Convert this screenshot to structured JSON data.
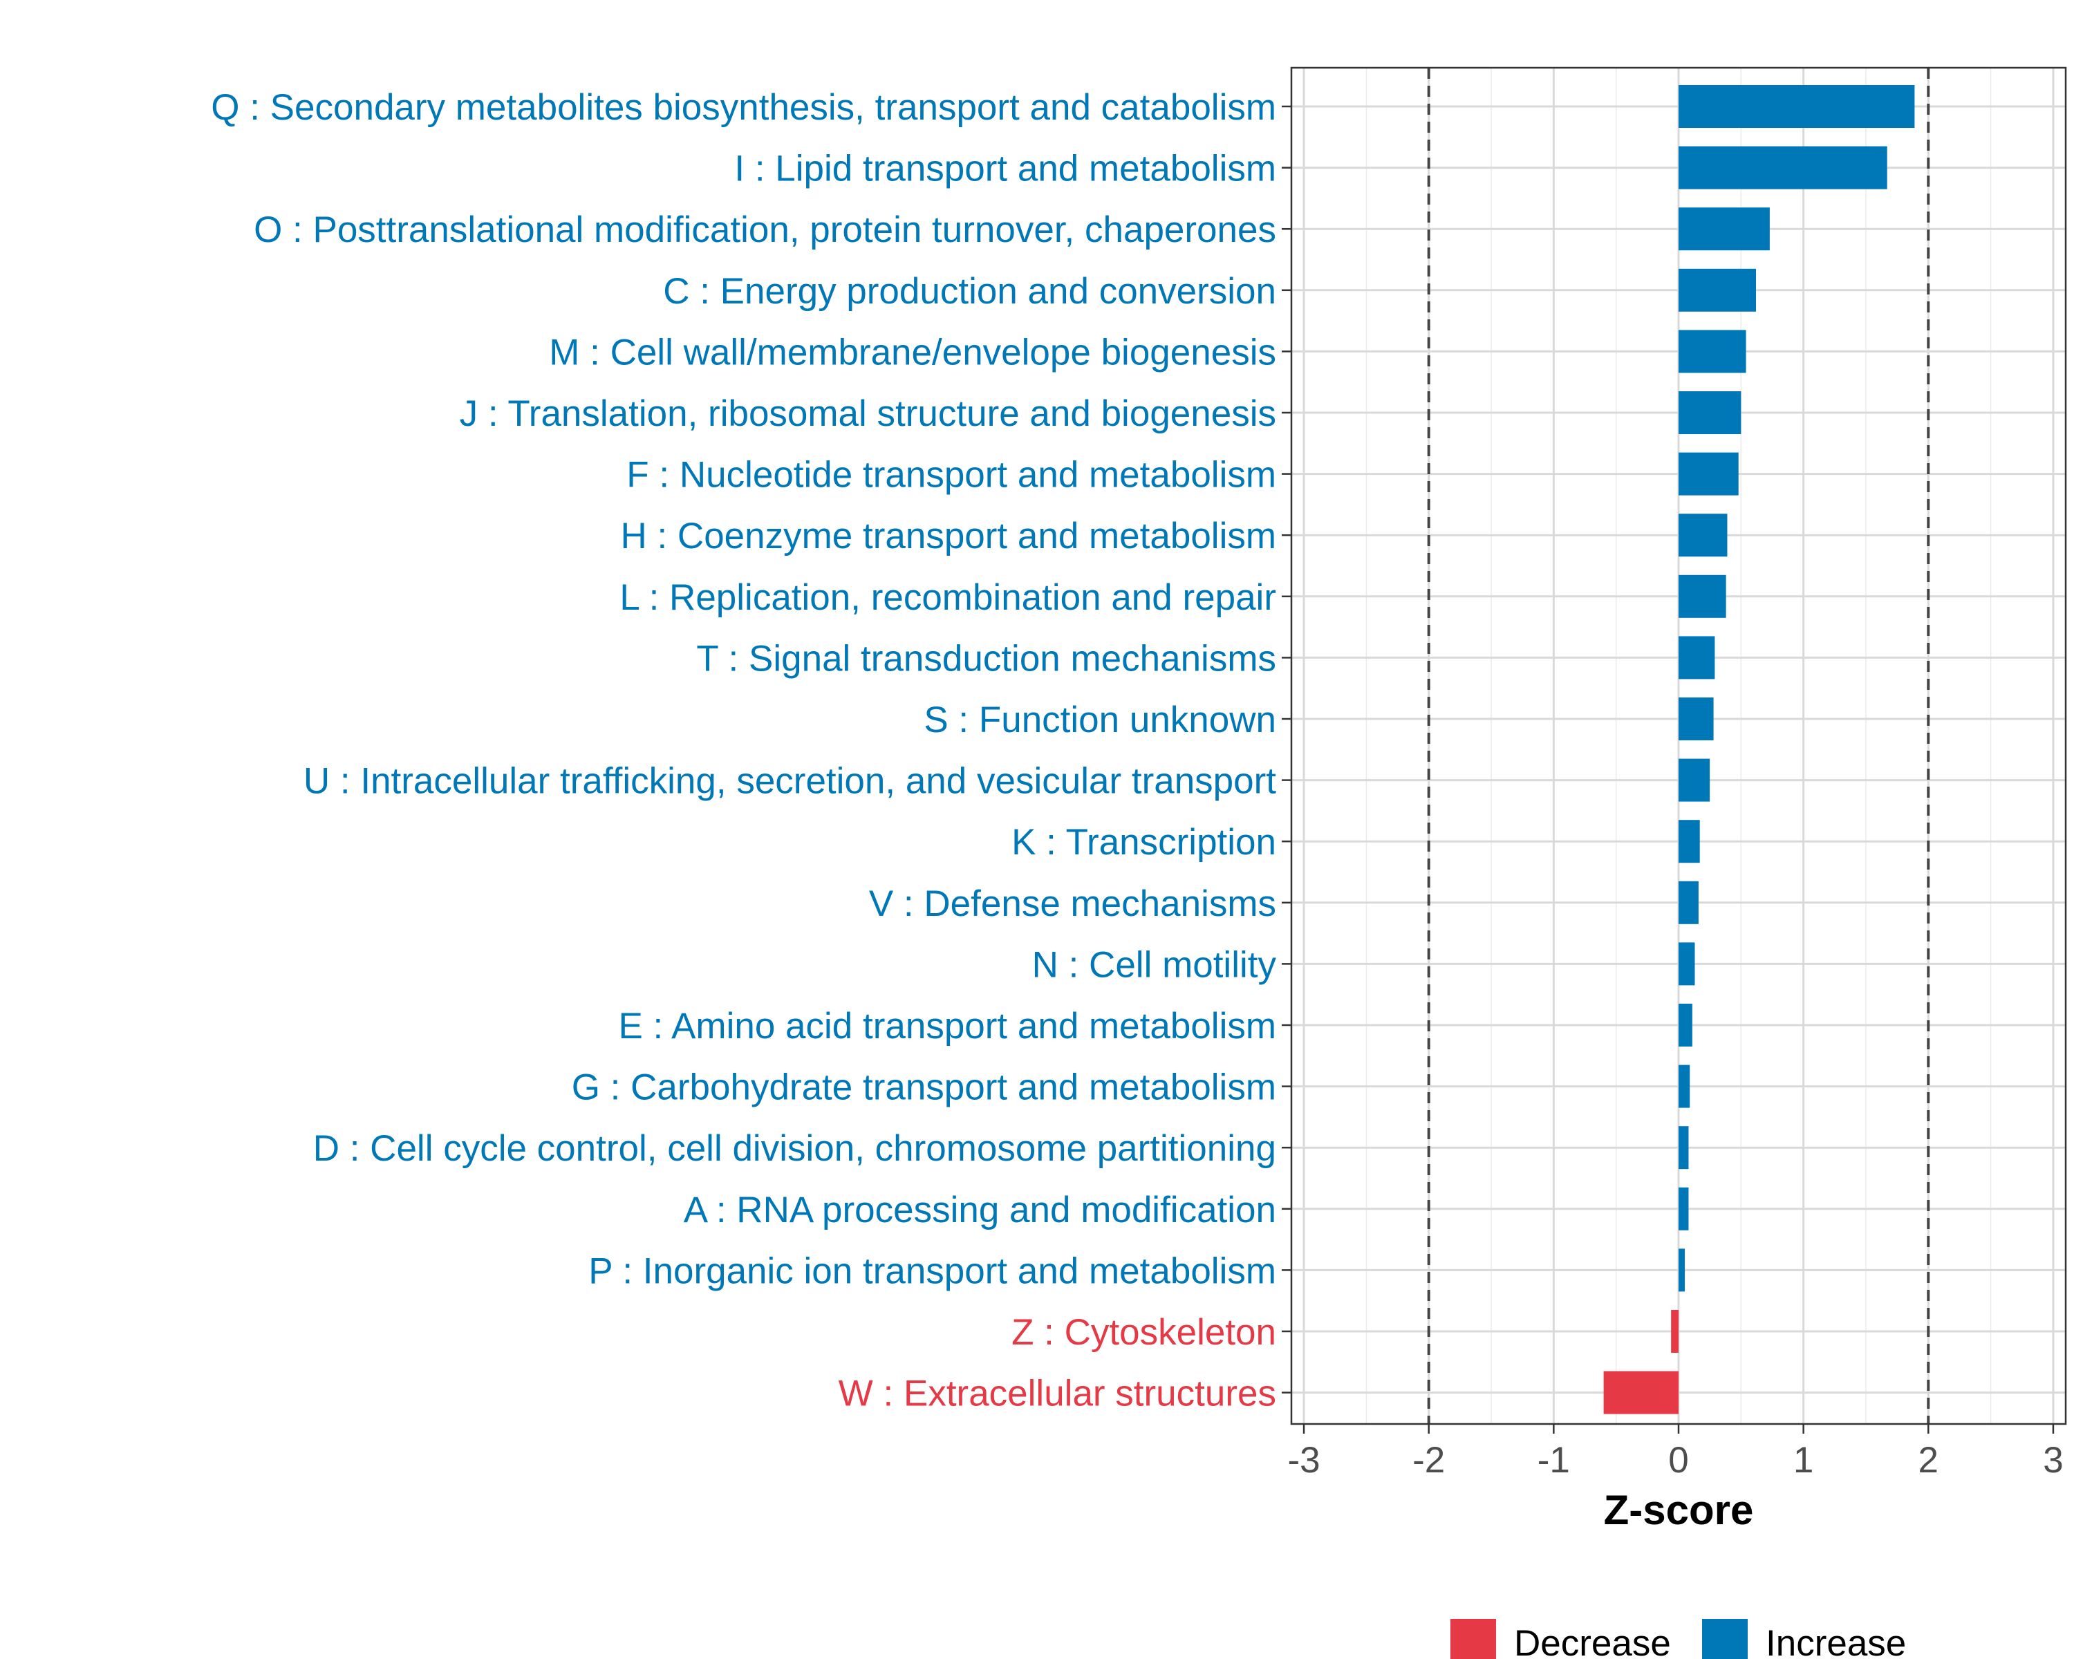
{
  "chart_data": {
    "type": "bar",
    "orientation": "horizontal",
    "title": "",
    "xlabel": "Z-score",
    "ylabel": "",
    "xlim": [
      -3.1,
      3.1
    ],
    "x_ticks": [
      -3,
      -2,
      -1,
      0,
      1,
      2,
      3
    ],
    "x_tick_labels": [
      "-3",
      "-2",
      "-1",
      "0",
      "1",
      "2",
      "3"
    ],
    "reference_lines": [
      -2,
      2
    ],
    "grid": true,
    "legend_position": "bottom",
    "legend": [
      {
        "label": "Decrease",
        "color": "#E63946"
      },
      {
        "label": "Increase",
        "color": "#0077B6"
      }
    ],
    "categories": [
      "Q : Secondary metabolites biosynthesis, transport and catabolism",
      "I : Lipid transport and metabolism",
      "O : Posttranslational modification, protein turnover, chaperones",
      "C : Energy production and conversion",
      "M : Cell wall/membrane/envelope biogenesis",
      "J : Translation, ribosomal structure and biogenesis",
      "F : Nucleotide transport and metabolism",
      "H : Coenzyme transport and metabolism",
      "L : Replication, recombination and repair",
      "T : Signal transduction mechanisms",
      "S : Function unknown",
      "U : Intracellular trafficking, secretion, and vesicular transport",
      "K : Transcription",
      "V : Defense mechanisms",
      "N : Cell motility",
      "E : Amino acid transport and metabolism",
      "G : Carbohydrate transport and metabolism",
      "D : Cell cycle control, cell division, chromosome partitioning",
      "A : RNA processing and modification",
      "P : Inorganic ion transport and metabolism",
      "Z : Cytoskeleton",
      "W : Extracellular structures"
    ],
    "values": [
      1.89,
      1.67,
      0.73,
      0.62,
      0.54,
      0.5,
      0.48,
      0.39,
      0.38,
      0.29,
      0.28,
      0.25,
      0.17,
      0.16,
      0.13,
      0.11,
      0.09,
      0.08,
      0.08,
      0.05,
      -0.06,
      -0.6
    ]
  }
}
